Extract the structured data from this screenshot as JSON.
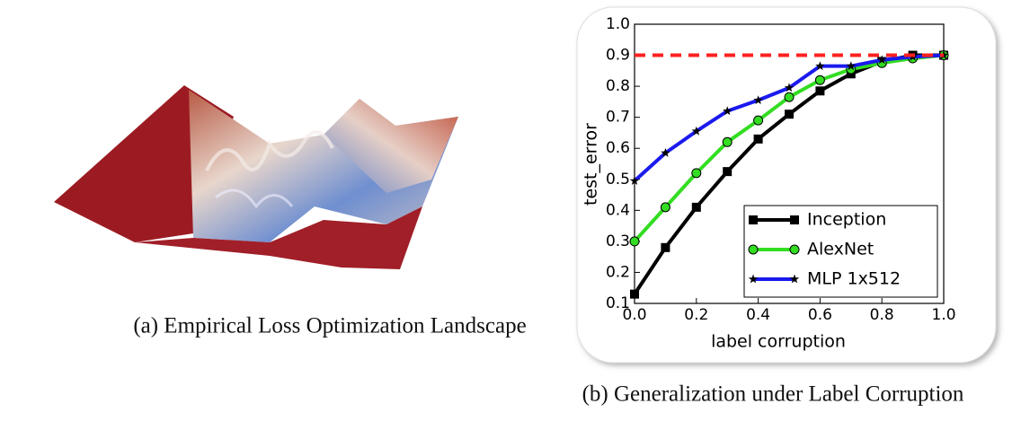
{
  "captions": [
    "(a) Empirical Loss Optimization Landscape",
    "(b) Generalization under Label Corruption"
  ],
  "chart_data": {
    "type": "line",
    "xlabel": "label corruption",
    "ylabel": "test_error",
    "x": [
      0,
      0.1,
      0.2,
      0.3,
      0.4,
      0.5,
      0.6,
      0.7,
      0.8,
      0.9,
      1.0
    ],
    "series": [
      {
        "name": "Inception",
        "color": "#000000",
        "marker": "square",
        "values": [
          0.13,
          0.28,
          0.41,
          0.525,
          0.63,
          0.71,
          0.785,
          0.84,
          0.88,
          0.9,
          0.9
        ]
      },
      {
        "name": "AlexNet",
        "color": "#33dd22",
        "marker": "circle",
        "values": [
          0.3,
          0.41,
          0.52,
          0.62,
          0.69,
          0.765,
          0.82,
          0.855,
          0.875,
          0.89,
          0.9
        ]
      },
      {
        "name": "MLP 1x512",
        "color": "#1a1aee",
        "marker": "star",
        "values": [
          0.495,
          0.585,
          0.655,
          0.72,
          0.755,
          0.795,
          0.865,
          0.865,
          0.885,
          0.895,
          0.9
        ]
      }
    ],
    "hline": {
      "value": 0.9,
      "color": "#ff2020"
    },
    "xlim": [
      0,
      1.0
    ],
    "ylim": [
      0.1,
      1.0
    ],
    "xticks": [
      {
        "value": 0,
        "label": "0.0"
      },
      0.2,
      0.4,
      0.6,
      0.8,
      {
        "value": 1.0,
        "label": "1.0"
      }
    ],
    "yticks": [
      0.1,
      0.2,
      0.3,
      0.4,
      0.5,
      0.6,
      0.7,
      0.8,
      0.9,
      {
        "value": 1.0,
        "label": "1.0"
      }
    ],
    "legend": "lower right"
  }
}
